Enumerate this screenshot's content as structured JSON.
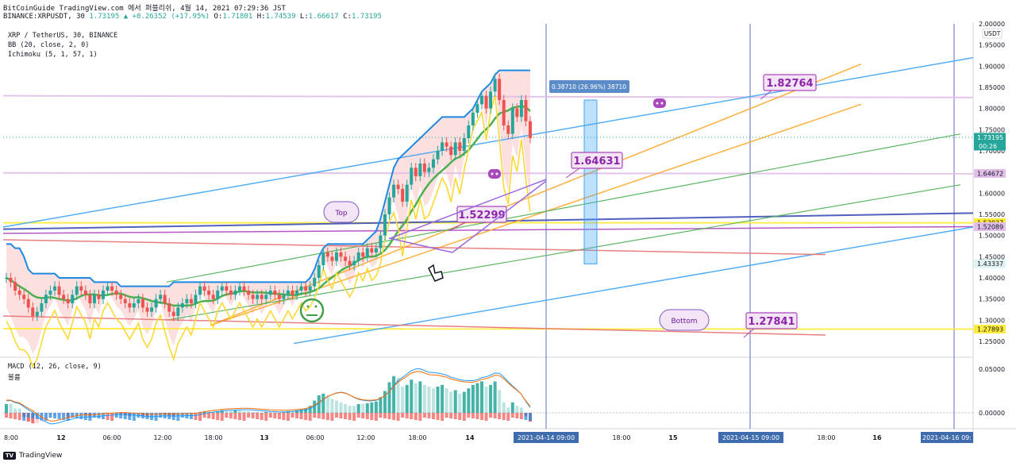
{
  "header": {
    "line1": "BitCoinGuide TradingView.com 에서 퍼블리쉬, 4월 14, 2021 07:29:36 JST",
    "symbol": "BINANCE:XRPUSDT, 30",
    "change": "1.73195 ▲ +0.26352 (+17.95%)",
    "o_label": "O:",
    "o_value": "1.71801",
    "h_label": "H:",
    "h_value": "1.74539",
    "l_label": "L:",
    "l_value": "1.66617",
    "c_label": "C:",
    "c_value": "1.73195"
  },
  "legend": {
    "pair": "XRP / TetherUS, 30, BINANCE",
    "bb": "BB (20, close, 2, 0)",
    "ichimoku": "Ichimoku (5, 1, 57, 1)",
    "macd": "MACD (12, 26, close, 9)",
    "macd_sub": "볼륨"
  },
  "footer": {
    "brand": "TradingView",
    "logo_text": "TV"
  },
  "colors": {
    "up": "#26a69a",
    "down": "#ef5350",
    "blue": "#42a5f5",
    "bb": "#1e88e5",
    "green": "#4caf50",
    "orange": "#ffa726",
    "yellow": "#ffeb3b",
    "purple": "#ab47bc",
    "pink": "#e1bee7",
    "red": "#e57373",
    "navy": "#3f51b5"
  },
  "chart_data": {
    "type": "candlestick",
    "symbol": "XRPUSDT",
    "timeframe": "30",
    "ylim": [
      1.22,
      2.0
    ],
    "y_ticks": [
      "2.00000",
      "1.95000",
      "1.90000",
      "1.85000",
      "1.80000",
      "1.75000",
      "1.70000",
      "1.65000",
      "1.60000",
      "1.55000",
      "1.50000",
      "1.45000",
      "1.40000",
      "1.35000",
      "1.30000",
      "1.25000"
    ],
    "y_unit": "USDT",
    "macd_ticks": [
      "0.05000",
      "0.00000"
    ],
    "x_ticks": [
      "8:00",
      "12",
      "06:00",
      "12:00",
      "18:00",
      "13",
      "06:00",
      "12:00",
      "18:00",
      "14",
      "18:00",
      "15",
      "18:00",
      "16"
    ],
    "x_highlight": [
      "2021-04-14 09:00",
      "2021-04-15 09:00",
      "2021-04-16 09:"
    ],
    "price_labels": [
      {
        "text": "1.73195",
        "sub": "00:26",
        "value": 1.73195,
        "color": "#26a69a"
      },
      {
        "text": "1.64672",
        "value": 1.64672,
        "color": "#e1bee7"
      },
      {
        "text": "1.53037",
        "value": 1.53037,
        "color": "#ffeb3b"
      },
      {
        "text": "1.52089",
        "value": 1.52089,
        "color": "#e1bee7"
      },
      {
        "text": "1.43337",
        "value": 1.43337,
        "color": "#e0f2f1"
      },
      {
        "text": "1.27893",
        "value": 1.27893,
        "color": "#ffeb3b"
      }
    ],
    "callouts": [
      "1.82764",
      "1.64631",
      "1.52299",
      "1.27841"
    ],
    "bubbles": [
      "Top",
      "Bottom"
    ],
    "measure_label": "0.38710 (26.96%) 38710",
    "candles_close": [
      1.4,
      1.39,
      1.37,
      1.36,
      1.35,
      1.33,
      1.31,
      1.32,
      1.34,
      1.36,
      1.37,
      1.38,
      1.36,
      1.35,
      1.34,
      1.36,
      1.38,
      1.37,
      1.36,
      1.34,
      1.36,
      1.35,
      1.37,
      1.38,
      1.37,
      1.36,
      1.35,
      1.34,
      1.33,
      1.34,
      1.35,
      1.33,
      1.32,
      1.33,
      1.35,
      1.36,
      1.34,
      1.32,
      1.31,
      1.33,
      1.34,
      1.35,
      1.34,
      1.36,
      1.38,
      1.37,
      1.36,
      1.35,
      1.37,
      1.38,
      1.37,
      1.36,
      1.37,
      1.38,
      1.37,
      1.36,
      1.35,
      1.36,
      1.35,
      1.36,
      1.37,
      1.36,
      1.35,
      1.36,
      1.37,
      1.36,
      1.37,
      1.38,
      1.37,
      1.38,
      1.4,
      1.43,
      1.46,
      1.45,
      1.44,
      1.46,
      1.45,
      1.44,
      1.43,
      1.44,
      1.46,
      1.45,
      1.47,
      1.46,
      1.47,
      1.5,
      1.55,
      1.59,
      1.62,
      1.61,
      1.58,
      1.62,
      1.66,
      1.64,
      1.67,
      1.65,
      1.66,
      1.68,
      1.7,
      1.72,
      1.71,
      1.69,
      1.72,
      1.7,
      1.73,
      1.76,
      1.79,
      1.81,
      1.83,
      1.8,
      1.84,
      1.87,
      1.82,
      1.76,
      1.74,
      1.8,
      1.78,
      1.82,
      1.77,
      1.73
    ],
    "bb_upper": [
      1.48,
      1.48,
      1.47,
      1.47,
      1.45,
      1.42,
      1.41,
      1.41,
      1.41,
      1.41,
      1.41,
      1.41,
      1.4,
      1.4,
      1.4,
      1.4,
      1.4,
      1.4,
      1.4,
      1.4,
      1.39,
      1.39,
      1.39,
      1.39,
      1.39,
      1.39,
      1.38,
      1.38,
      1.38,
      1.38,
      1.38,
      1.38,
      1.38,
      1.38,
      1.38,
      1.38,
      1.38,
      1.38,
      1.39,
      1.39,
      1.39,
      1.39,
      1.39,
      1.39,
      1.39,
      1.39,
      1.39,
      1.39,
      1.39,
      1.39,
      1.39,
      1.39,
      1.39,
      1.39,
      1.39,
      1.39,
      1.39,
      1.39,
      1.39,
      1.39,
      1.39,
      1.39,
      1.39,
      1.39,
      1.39,
      1.39,
      1.39,
      1.39,
      1.39,
      1.4,
      1.42,
      1.45,
      1.47,
      1.48,
      1.48,
      1.48,
      1.48,
      1.48,
      1.48,
      1.48,
      1.48,
      1.48,
      1.49,
      1.5,
      1.51,
      1.54,
      1.58,
      1.62,
      1.66,
      1.68,
      1.69,
      1.7,
      1.71,
      1.72,
      1.73,
      1.74,
      1.75,
      1.76,
      1.77,
      1.78,
      1.78,
      1.78,
      1.78,
      1.78,
      1.78,
      1.79,
      1.8,
      1.82,
      1.84,
      1.85,
      1.86,
      1.88,
      1.89,
      1.89,
      1.89,
      1.89,
      1.89,
      1.89,
      1.89,
      1.89
    ],
    "macd_hist": [
      0.01,
      0.01,
      0.005,
      0.005,
      -0.005,
      -0.01,
      -0.012,
      -0.012,
      -0.01,
      -0.008,
      -0.006,
      -0.004,
      -0.004,
      -0.004,
      -0.005,
      -0.004,
      -0.002,
      -0.002,
      -0.003,
      -0.004,
      -0.003,
      -0.002,
      -0.001,
      0.0,
      0.0,
      -0.001,
      -0.002,
      -0.003,
      -0.004,
      -0.003,
      -0.002,
      -0.003,
      -0.004,
      -0.003,
      -0.002,
      -0.001,
      -0.002,
      -0.003,
      -0.004,
      -0.003,
      -0.002,
      -0.001,
      -0.001,
      0.0,
      0.001,
      0.002,
      0.002,
      0.001,
      0.002,
      0.003,
      0.003,
      0.002,
      0.003,
      0.003,
      0.002,
      0.002,
      0.001,
      0.001,
      0.0,
      0.001,
      0.001,
      0.001,
      0.0,
      0.001,
      0.002,
      0.002,
      0.003,
      0.004,
      0.005,
      0.008,
      0.014,
      0.02,
      0.022,
      0.02,
      0.016,
      0.014,
      0.012,
      0.01,
      0.008,
      0.008,
      0.01,
      0.01,
      0.011,
      0.012,
      0.013,
      0.018,
      0.025,
      0.035,
      0.042,
      0.04,
      0.03,
      0.032,
      0.038,
      0.034,
      0.036,
      0.032,
      0.03,
      0.028,
      0.03,
      0.032,
      0.028,
      0.024,
      0.026,
      0.022,
      0.024,
      0.028,
      0.032,
      0.034,
      0.036,
      0.03,
      0.032,
      0.036,
      0.026,
      0.012,
      0.006,
      0.012,
      0.008,
      0.006,
      -0.004,
      -0.01
    ]
  }
}
